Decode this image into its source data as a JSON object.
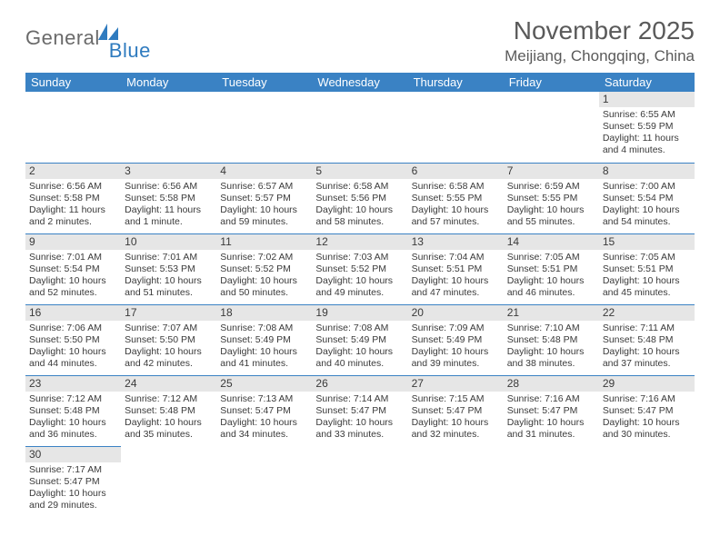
{
  "brand": {
    "general": "General",
    "blue": "Blue"
  },
  "title": "November 2025",
  "location": "Meijiang, Chongqing, China",
  "colors": {
    "header_bg": "#3a82c4",
    "header_text": "#ffffff",
    "daynum_bg": "#e6e6e6",
    "cell_border": "#3a82c4",
    "body_text": "#3a3a3a",
    "logo_gray": "#6a6a6a",
    "logo_blue": "#2f7bbf"
  },
  "dow": [
    "Sunday",
    "Monday",
    "Tuesday",
    "Wednesday",
    "Thursday",
    "Friday",
    "Saturday"
  ],
  "weeks": [
    [
      null,
      null,
      null,
      null,
      null,
      null,
      {
        "n": "1",
        "sr": "Sunrise: 6:55 AM",
        "ss": "Sunset: 5:59 PM",
        "dl": "Daylight: 11 hours and 4 minutes."
      }
    ],
    [
      {
        "n": "2",
        "sr": "Sunrise: 6:56 AM",
        "ss": "Sunset: 5:58 PM",
        "dl": "Daylight: 11 hours and 2 minutes."
      },
      {
        "n": "3",
        "sr": "Sunrise: 6:56 AM",
        "ss": "Sunset: 5:58 PM",
        "dl": "Daylight: 11 hours and 1 minute."
      },
      {
        "n": "4",
        "sr": "Sunrise: 6:57 AM",
        "ss": "Sunset: 5:57 PM",
        "dl": "Daylight: 10 hours and 59 minutes."
      },
      {
        "n": "5",
        "sr": "Sunrise: 6:58 AM",
        "ss": "Sunset: 5:56 PM",
        "dl": "Daylight: 10 hours and 58 minutes."
      },
      {
        "n": "6",
        "sr": "Sunrise: 6:58 AM",
        "ss": "Sunset: 5:55 PM",
        "dl": "Daylight: 10 hours and 57 minutes."
      },
      {
        "n": "7",
        "sr": "Sunrise: 6:59 AM",
        "ss": "Sunset: 5:55 PM",
        "dl": "Daylight: 10 hours and 55 minutes."
      },
      {
        "n": "8",
        "sr": "Sunrise: 7:00 AM",
        "ss": "Sunset: 5:54 PM",
        "dl": "Daylight: 10 hours and 54 minutes."
      }
    ],
    [
      {
        "n": "9",
        "sr": "Sunrise: 7:01 AM",
        "ss": "Sunset: 5:54 PM",
        "dl": "Daylight: 10 hours and 52 minutes."
      },
      {
        "n": "10",
        "sr": "Sunrise: 7:01 AM",
        "ss": "Sunset: 5:53 PM",
        "dl": "Daylight: 10 hours and 51 minutes."
      },
      {
        "n": "11",
        "sr": "Sunrise: 7:02 AM",
        "ss": "Sunset: 5:52 PM",
        "dl": "Daylight: 10 hours and 50 minutes."
      },
      {
        "n": "12",
        "sr": "Sunrise: 7:03 AM",
        "ss": "Sunset: 5:52 PM",
        "dl": "Daylight: 10 hours and 49 minutes."
      },
      {
        "n": "13",
        "sr": "Sunrise: 7:04 AM",
        "ss": "Sunset: 5:51 PM",
        "dl": "Daylight: 10 hours and 47 minutes."
      },
      {
        "n": "14",
        "sr": "Sunrise: 7:05 AM",
        "ss": "Sunset: 5:51 PM",
        "dl": "Daylight: 10 hours and 46 minutes."
      },
      {
        "n": "15",
        "sr": "Sunrise: 7:05 AM",
        "ss": "Sunset: 5:51 PM",
        "dl": "Daylight: 10 hours and 45 minutes."
      }
    ],
    [
      {
        "n": "16",
        "sr": "Sunrise: 7:06 AM",
        "ss": "Sunset: 5:50 PM",
        "dl": "Daylight: 10 hours and 44 minutes."
      },
      {
        "n": "17",
        "sr": "Sunrise: 7:07 AM",
        "ss": "Sunset: 5:50 PM",
        "dl": "Daylight: 10 hours and 42 minutes."
      },
      {
        "n": "18",
        "sr": "Sunrise: 7:08 AM",
        "ss": "Sunset: 5:49 PM",
        "dl": "Daylight: 10 hours and 41 minutes."
      },
      {
        "n": "19",
        "sr": "Sunrise: 7:08 AM",
        "ss": "Sunset: 5:49 PM",
        "dl": "Daylight: 10 hours and 40 minutes."
      },
      {
        "n": "20",
        "sr": "Sunrise: 7:09 AM",
        "ss": "Sunset: 5:49 PM",
        "dl": "Daylight: 10 hours and 39 minutes."
      },
      {
        "n": "21",
        "sr": "Sunrise: 7:10 AM",
        "ss": "Sunset: 5:48 PM",
        "dl": "Daylight: 10 hours and 38 minutes."
      },
      {
        "n": "22",
        "sr": "Sunrise: 7:11 AM",
        "ss": "Sunset: 5:48 PM",
        "dl": "Daylight: 10 hours and 37 minutes."
      }
    ],
    [
      {
        "n": "23",
        "sr": "Sunrise: 7:12 AM",
        "ss": "Sunset: 5:48 PM",
        "dl": "Daylight: 10 hours and 36 minutes."
      },
      {
        "n": "24",
        "sr": "Sunrise: 7:12 AM",
        "ss": "Sunset: 5:48 PM",
        "dl": "Daylight: 10 hours and 35 minutes."
      },
      {
        "n": "25",
        "sr": "Sunrise: 7:13 AM",
        "ss": "Sunset: 5:47 PM",
        "dl": "Daylight: 10 hours and 34 minutes."
      },
      {
        "n": "26",
        "sr": "Sunrise: 7:14 AM",
        "ss": "Sunset: 5:47 PM",
        "dl": "Daylight: 10 hours and 33 minutes."
      },
      {
        "n": "27",
        "sr": "Sunrise: 7:15 AM",
        "ss": "Sunset: 5:47 PM",
        "dl": "Daylight: 10 hours and 32 minutes."
      },
      {
        "n": "28",
        "sr": "Sunrise: 7:16 AM",
        "ss": "Sunset: 5:47 PM",
        "dl": "Daylight: 10 hours and 31 minutes."
      },
      {
        "n": "29",
        "sr": "Sunrise: 7:16 AM",
        "ss": "Sunset: 5:47 PM",
        "dl": "Daylight: 10 hours and 30 minutes."
      }
    ],
    [
      {
        "n": "30",
        "sr": "Sunrise: 7:17 AM",
        "ss": "Sunset: 5:47 PM",
        "dl": "Daylight: 10 hours and 29 minutes."
      },
      null,
      null,
      null,
      null,
      null,
      null
    ]
  ]
}
